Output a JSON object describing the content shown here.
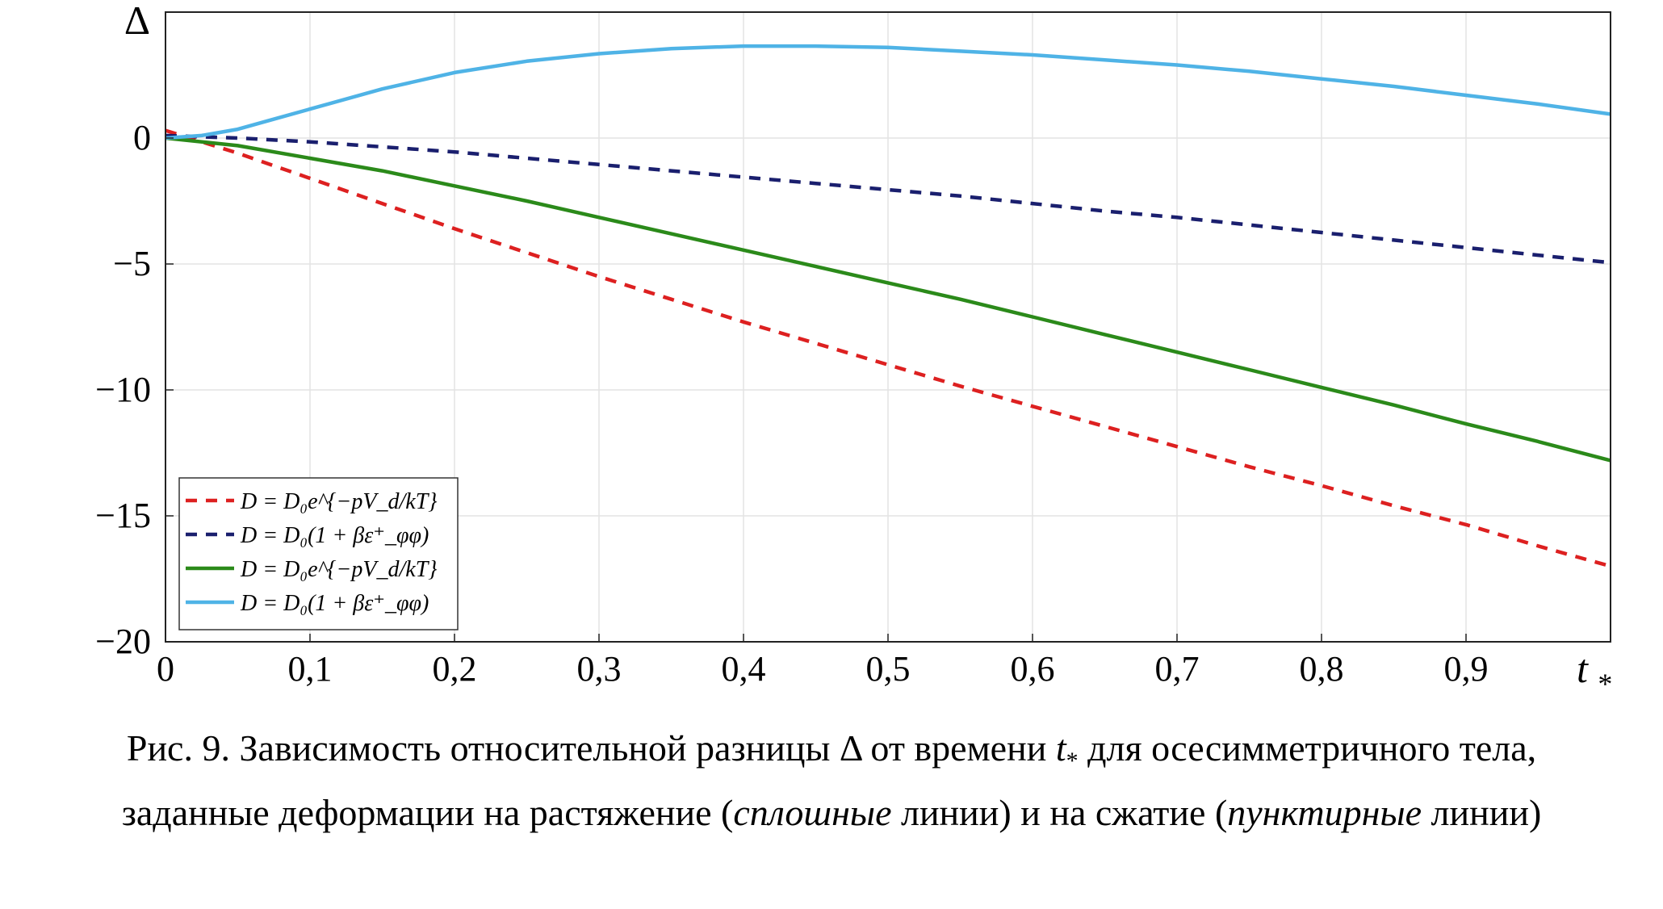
{
  "chart_data": {
    "type": "line",
    "xlabel": "t",
    "xlabel_subscript": "*",
    "ylabel": "Δ",
    "xlim": [
      0,
      1
    ],
    "ylim": [
      -20,
      5
    ],
    "grid": true,
    "legend_position": "bottom-left",
    "x_ticks": [
      {
        "value": 0,
        "label": "0"
      },
      {
        "value": 0.1,
        "label": "0,1"
      },
      {
        "value": 0.2,
        "label": "0,2"
      },
      {
        "value": 0.3,
        "label": "0,3"
      },
      {
        "value": 0.4,
        "label": "0,4"
      },
      {
        "value": 0.5,
        "label": "0,5"
      },
      {
        "value": 0.6,
        "label": "0,6"
      },
      {
        "value": 0.7,
        "label": "0,7"
      },
      {
        "value": 0.8,
        "label": "0,8"
      },
      {
        "value": 0.9,
        "label": "0,9"
      }
    ],
    "y_ticks": [
      {
        "value": 0,
        "label": "0"
      },
      {
        "value": -5,
        "label": "−5"
      },
      {
        "value": -10,
        "label": "−10"
      },
      {
        "value": -15,
        "label": "−15"
      },
      {
        "value": -20,
        "label": "−20"
      }
    ],
    "series": [
      {
        "legend": "D = D₀e^{−pV_d/kT}",
        "color": "#dd2020",
        "dashed": true,
        "x": [
          0,
          0.05,
          0.1,
          0.15,
          0.2,
          0.25,
          0.3,
          0.35,
          0.4,
          0.45,
          0.5,
          0.55,
          0.6,
          0.65,
          0.7,
          0.75,
          0.8,
          0.85,
          0.9,
          0.95,
          1.0
        ],
        "y": [
          0.3,
          -0.6,
          -1.6,
          -2.6,
          -3.6,
          -4.55,
          -5.5,
          -6.4,
          -7.3,
          -8.15,
          -9.0,
          -9.85,
          -10.65,
          -11.45,
          -12.25,
          -13.05,
          -13.8,
          -14.6,
          -15.35,
          -16.2,
          -17.0
        ]
      },
      {
        "legend": "D = D₀(1 + βε⁺_φφ)",
        "color": "#1a1f6e",
        "dashed": true,
        "x": [
          0,
          0.05,
          0.1,
          0.15,
          0.2,
          0.25,
          0.3,
          0.35,
          0.4,
          0.45,
          0.5,
          0.55,
          0.6,
          0.65,
          0.7,
          0.75,
          0.8,
          0.85,
          0.9,
          0.95,
          1.0
        ],
        "y": [
          0.1,
          0.0,
          -0.15,
          -0.35,
          -0.55,
          -0.8,
          -1.05,
          -1.3,
          -1.55,
          -1.8,
          -2.05,
          -2.3,
          -2.6,
          -2.9,
          -3.15,
          -3.45,
          -3.75,
          -4.05,
          -4.35,
          -4.65,
          -4.95
        ]
      },
      {
        "legend": "D = D₀e^{−pV_d/kT}",
        "color": "#2b8a1a",
        "dashed": false,
        "x": [
          0,
          0.05,
          0.1,
          0.15,
          0.2,
          0.25,
          0.3,
          0.35,
          0.4,
          0.45,
          0.5,
          0.55,
          0.6,
          0.65,
          0.7,
          0.75,
          0.8,
          0.85,
          0.9,
          0.95,
          1.0
        ],
        "y": [
          0.0,
          -0.3,
          -0.8,
          -1.3,
          -1.9,
          -2.5,
          -3.15,
          -3.8,
          -4.45,
          -5.1,
          -5.75,
          -6.4,
          -7.1,
          -7.8,
          -8.5,
          -9.2,
          -9.9,
          -10.6,
          -11.35,
          -12.05,
          -12.8
        ]
      },
      {
        "legend": "D = D₀(1 + βε⁺_φφ)",
        "color": "#4fb3e6",
        "dashed": false,
        "x": [
          0,
          0.025,
          0.05,
          0.075,
          0.1,
          0.15,
          0.2,
          0.25,
          0.3,
          0.35,
          0.4,
          0.45,
          0.5,
          0.55,
          0.6,
          0.65,
          0.7,
          0.75,
          0.8,
          0.85,
          0.9,
          0.95,
          1.0
        ],
        "y": [
          0.0,
          0.1,
          0.35,
          0.75,
          1.15,
          1.95,
          2.6,
          3.05,
          3.35,
          3.55,
          3.65,
          3.65,
          3.6,
          3.45,
          3.3,
          3.1,
          2.9,
          2.65,
          2.35,
          2.05,
          1.7,
          1.35,
          0.95
        ]
      }
    ]
  },
  "caption": {
    "line1_prefix": "Рис. 9. Зависимость относительной разницы Δ от времени",
    "line1_var": "t",
    "line1_var_sub": "*",
    "line1_suffix": "для осесимметричного тела,",
    "line2_a": "заданные деформации на растяжение (",
    "line2_b": "сплошные",
    "line2_c": "линии) и на сжатие (",
    "line2_d": "пунктирные",
    "line2_e": "линии)"
  }
}
